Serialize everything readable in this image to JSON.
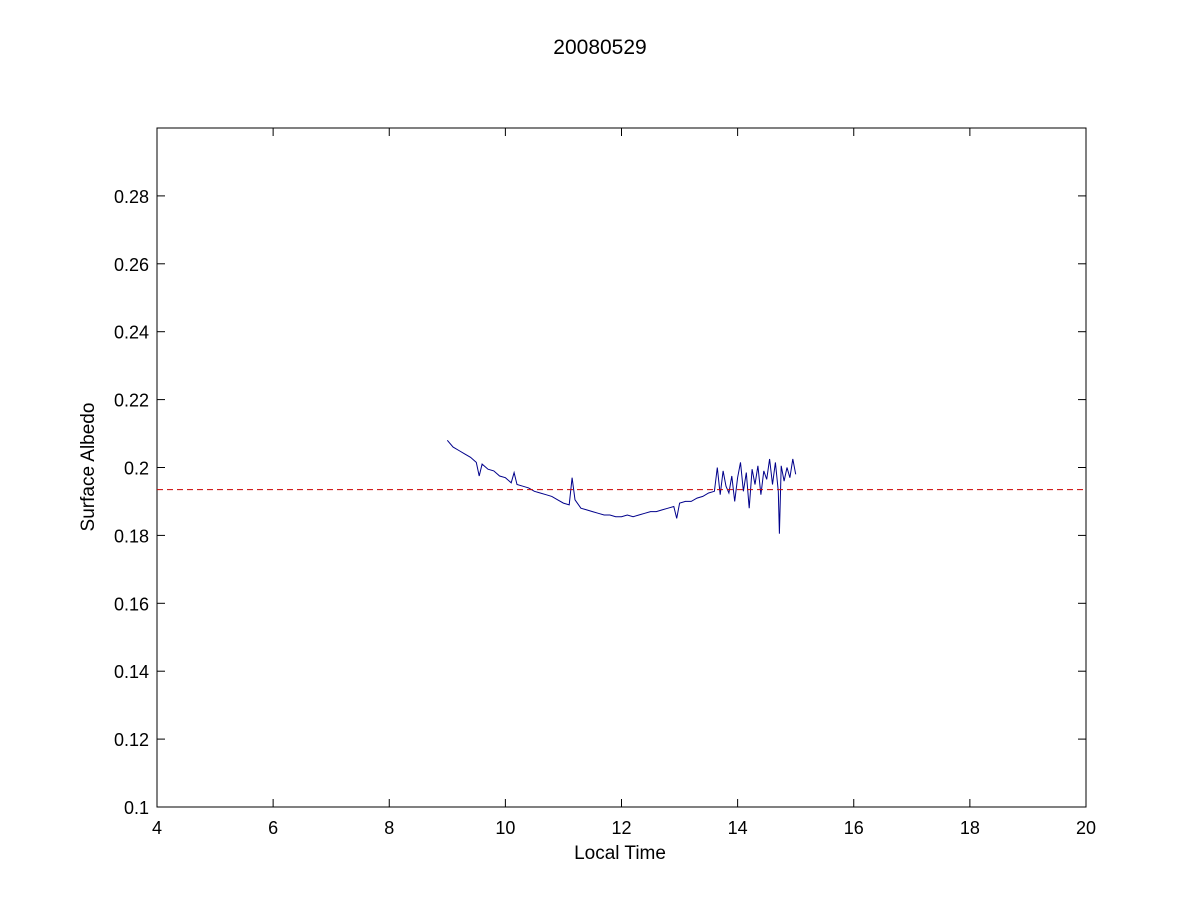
{
  "chart_data": {
    "type": "line",
    "title": "20080529",
    "xlabel": "Local Time",
    "ylabel": "Surface Albedo",
    "xlim": [
      4,
      20
    ],
    "ylim": [
      0.1,
      0.3
    ],
    "x_ticks": [
      4,
      6,
      8,
      10,
      12,
      14,
      16,
      18,
      20
    ],
    "y_ticks": [
      0.1,
      0.12,
      0.14,
      0.16,
      0.18,
      0.2,
      0.22,
      0.24,
      0.26,
      0.28
    ],
    "x_tick_labels": [
      "4",
      "6",
      "8",
      "10",
      "12",
      "14",
      "16",
      "18",
      "20"
    ],
    "y_tick_labels": [
      "0.1",
      "0.12",
      "0.14",
      "0.16",
      "0.18",
      "0.2",
      "0.22",
      "0.24",
      "0.26",
      "0.28"
    ],
    "grid": false,
    "legend": "none",
    "series": [
      {
        "color": "#00008b",
        "style": "solid",
        "x": [
          9.0,
          9.1,
          9.2,
          9.3,
          9.4,
          9.5,
          9.55,
          9.6,
          9.7,
          9.8,
          9.9,
          10.0,
          10.1,
          10.15,
          10.2,
          10.3,
          10.4,
          10.5,
          10.6,
          10.7,
          10.8,
          10.9,
          11.0,
          11.1,
          11.15,
          11.2,
          11.3,
          11.4,
          11.5,
          11.6,
          11.7,
          11.8,
          11.9,
          12.0,
          12.1,
          12.2,
          12.3,
          12.4,
          12.5,
          12.6,
          12.7,
          12.8,
          12.9,
          12.95,
          13.0,
          13.1,
          13.2,
          13.3,
          13.4,
          13.5,
          13.6,
          13.65,
          13.7,
          13.75,
          13.8,
          13.85,
          13.9,
          13.95,
          14.0,
          14.05,
          14.1,
          14.15,
          14.2,
          14.25,
          14.3,
          14.35,
          14.4,
          14.45,
          14.5,
          14.55,
          14.6,
          14.65,
          14.7,
          14.72,
          14.75,
          14.8,
          14.85,
          14.9,
          14.95,
          15.0
        ],
        "y": [
          0.208,
          0.206,
          0.205,
          0.204,
          0.203,
          0.2015,
          0.1975,
          0.201,
          0.1995,
          0.199,
          0.1975,
          0.197,
          0.1955,
          0.1985,
          0.195,
          0.1945,
          0.194,
          0.193,
          0.1925,
          0.192,
          0.1915,
          0.1905,
          0.1895,
          0.189,
          0.197,
          0.1905,
          0.188,
          0.1875,
          0.187,
          0.1865,
          0.186,
          0.186,
          0.1855,
          0.1855,
          0.186,
          0.1855,
          0.186,
          0.1865,
          0.187,
          0.187,
          0.1875,
          0.188,
          0.1885,
          0.185,
          0.1895,
          0.19,
          0.19,
          0.191,
          0.1915,
          0.1925,
          0.193,
          0.2,
          0.192,
          0.199,
          0.1945,
          0.1925,
          0.1975,
          0.19,
          0.197,
          0.2015,
          0.193,
          0.1985,
          0.188,
          0.1995,
          0.195,
          0.2005,
          0.192,
          0.199,
          0.1965,
          0.2025,
          0.195,
          0.2015,
          0.193,
          0.1805,
          0.2005,
          0.196,
          0.2,
          0.197,
          0.2025,
          0.198
        ]
      },
      {
        "color": "#cc0000",
        "style": "dashed",
        "x": [
          4,
          20
        ],
        "y": [
          0.1935,
          0.1935
        ]
      }
    ]
  }
}
